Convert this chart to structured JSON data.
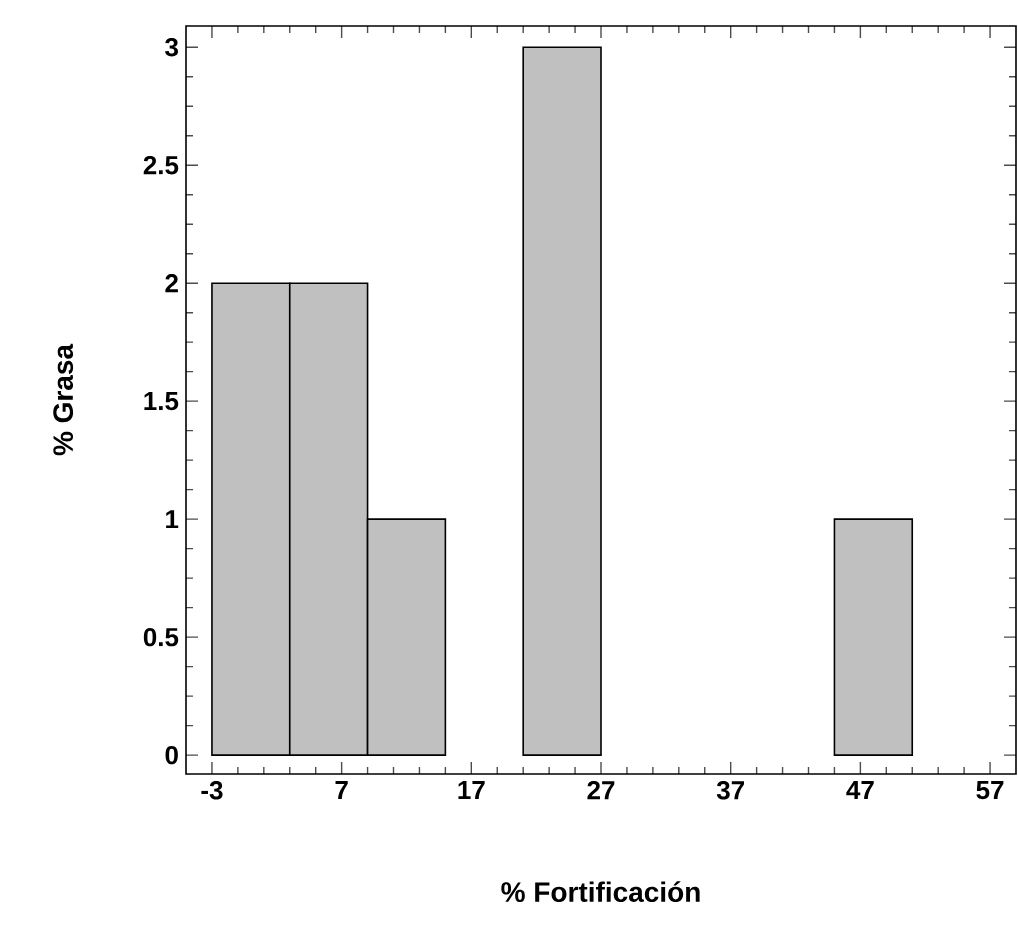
{
  "chart_data": {
    "type": "histogram",
    "xlabel": "% Fortificación",
    "ylabel": "% Grasa",
    "bins": [
      -3,
      3,
      9,
      15,
      21,
      27,
      33,
      39,
      45,
      51,
      57
    ],
    "values": [
      2,
      2,
      1,
      0,
      3,
      0,
      0,
      0,
      1,
      0
    ],
    "color": "#c0c0c0",
    "xlim": [
      -5,
      59
    ],
    "ylim": [
      -0.08,
      3.09
    ],
    "xticks": [
      -3,
      7,
      17,
      27,
      37,
      47,
      57
    ],
    "yticks": [
      0,
      0.5,
      1,
      1.5,
      2,
      2.5,
      3
    ],
    "grid": false
  }
}
